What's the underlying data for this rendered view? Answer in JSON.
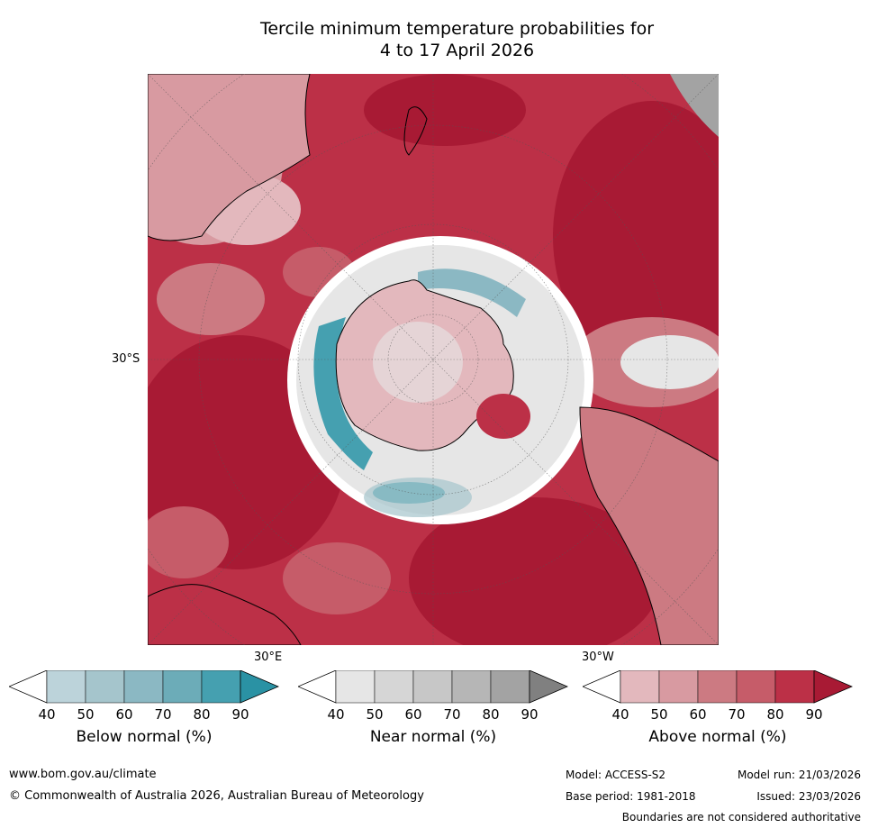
{
  "title": {
    "line1": "Tercile minimum temperature probabilities for",
    "line2": "4 to 17 April 2026"
  },
  "map": {
    "projection": "south-polar",
    "labels": {
      "lat_30s": "30°S",
      "lon_30e": "30°E",
      "lon_30w": "30°W"
    }
  },
  "legends": [
    {
      "key": "below",
      "label": "Below normal (%)",
      "ticks": [
        "40",
        "50",
        "60",
        "70",
        "80",
        "90"
      ],
      "colors": [
        "#ffffff",
        "#bcd3da",
        "#a5c5cc",
        "#8bb8c3",
        "#6cacb8",
        "#45a0b0",
        "#2a92a4"
      ]
    },
    {
      "key": "near",
      "label": "Near normal (%)",
      "ticks": [
        "40",
        "50",
        "60",
        "70",
        "80",
        "90"
      ],
      "colors": [
        "#ffffff",
        "#e6e6e6",
        "#d6d6d6",
        "#c7c7c7",
        "#b6b6b6",
        "#a3a3a3",
        "#808080"
      ]
    },
    {
      "key": "above",
      "label": "Above normal (%)",
      "ticks": [
        "40",
        "50",
        "60",
        "70",
        "80",
        "90"
      ],
      "colors": [
        "#ffffff",
        "#e3b8bd",
        "#d89aa1",
        "#cc7a82",
        "#c65c69",
        "#bc3047",
        "#a81a34"
      ]
    }
  ],
  "footer": {
    "website": "www.bom.gov.au/climate",
    "copyright": "© Commonwealth of Australia 2026, Australian Bureau of Meteorology",
    "model": "Model: ACCESS-S2",
    "model_run": "Model run: 21/03/2026",
    "base_period": "Base period: 1981-2018",
    "issued": "Issued: 23/03/2026",
    "disclaimer": "Boundaries are not considered authoritative"
  }
}
